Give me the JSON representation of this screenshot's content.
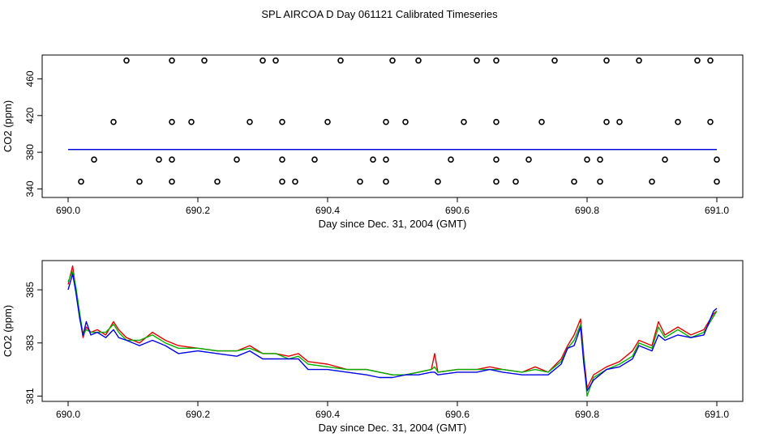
{
  "title": "SPL AIRCOA D  Day 061121  Calibrated Timeseries",
  "colors": {
    "red": "#e00000",
    "green": "#00b000",
    "blue": "#0000e0",
    "axis": "#000000"
  },
  "chart_data": [
    {
      "type": "scatter",
      "xlabel": "Day since Dec. 31, 2004 (GMT)",
      "ylabel": "CO2 (ppm)",
      "xlim": [
        690.0,
        691.0
      ],
      "ylim": [
        336,
        486
      ],
      "xticks": [
        690.0,
        690.2,
        690.4,
        690.6,
        690.8,
        691.0
      ],
      "xtick_labels": [
        "690.0",
        "690.2",
        "690.4",
        "690.6",
        "690.8",
        "691.0"
      ],
      "yticks": [
        340,
        380,
        420,
        460
      ],
      "ytick_labels": [
        "340",
        "380",
        "420",
        "460"
      ],
      "grid": false,
      "points": [
        [
          690.09,
          480
        ],
        [
          690.16,
          480
        ],
        [
          690.21,
          480
        ],
        [
          690.3,
          480
        ],
        [
          690.32,
          480
        ],
        [
          690.42,
          480
        ],
        [
          690.5,
          480
        ],
        [
          690.54,
          480
        ],
        [
          690.63,
          480
        ],
        [
          690.66,
          480
        ],
        [
          690.75,
          480
        ],
        [
          690.83,
          480
        ],
        [
          690.88,
          480
        ],
        [
          690.97,
          480
        ],
        [
          690.99,
          480
        ],
        [
          690.07,
          413
        ],
        [
          690.16,
          413
        ],
        [
          690.19,
          413
        ],
        [
          690.28,
          413
        ],
        [
          690.33,
          413
        ],
        [
          690.4,
          413
        ],
        [
          690.49,
          413
        ],
        [
          690.52,
          413
        ],
        [
          690.61,
          413
        ],
        [
          690.66,
          413
        ],
        [
          690.73,
          413
        ],
        [
          690.83,
          413
        ],
        [
          690.85,
          413
        ],
        [
          690.94,
          413
        ],
        [
          690.99,
          413
        ],
        [
          690.04,
          372
        ],
        [
          690.14,
          372
        ],
        [
          690.16,
          372
        ],
        [
          690.26,
          372
        ],
        [
          690.33,
          372
        ],
        [
          690.38,
          372
        ],
        [
          690.47,
          372
        ],
        [
          690.49,
          372
        ],
        [
          690.59,
          372
        ],
        [
          690.66,
          372
        ],
        [
          690.71,
          372
        ],
        [
          690.8,
          372
        ],
        [
          690.82,
          372
        ],
        [
          690.92,
          372
        ],
        [
          691.0,
          372
        ],
        [
          690.02,
          348
        ],
        [
          690.11,
          348
        ],
        [
          690.16,
          348
        ],
        [
          690.23,
          348
        ],
        [
          690.33,
          348
        ],
        [
          690.35,
          348
        ],
        [
          690.45,
          348
        ],
        [
          690.49,
          348
        ],
        [
          690.57,
          348
        ],
        [
          690.66,
          348
        ],
        [
          690.69,
          348
        ],
        [
          690.78,
          348
        ],
        [
          690.82,
          348
        ],
        [
          690.9,
          348
        ],
        [
          691.0,
          348
        ]
      ],
      "series": [
        {
          "color": "red",
          "level": 383
        },
        {
          "color": "green",
          "level": 383
        },
        {
          "color": "blue",
          "level": 383
        }
      ]
    },
    {
      "type": "line",
      "xlabel": "Day since Dec. 31, 2004 (GMT)",
      "ylabel": "CO2 (ppm)",
      "xlim": [
        690.0,
        691.0
      ],
      "ylim": [
        380.8,
        386.1
      ],
      "xticks": [
        690.0,
        690.2,
        690.4,
        690.6,
        690.8,
        691.0
      ],
      "xtick_labels": [
        "690.0",
        "690.2",
        "690.4",
        "690.6",
        "690.8",
        "691.0"
      ],
      "yticks": [
        381,
        383,
        385
      ],
      "ytick_labels": [
        "381",
        "383",
        "385"
      ],
      "grid": false,
      "x": [
        690.0,
        690.007,
        690.012,
        690.018,
        690.023,
        690.028,
        690.035,
        690.045,
        690.058,
        690.07,
        690.078,
        690.09,
        690.11,
        690.13,
        690.15,
        690.17,
        690.2,
        690.23,
        690.26,
        690.28,
        690.3,
        690.32,
        690.34,
        690.355,
        690.37,
        690.4,
        690.43,
        690.46,
        690.48,
        690.5,
        690.52,
        690.54,
        690.56,
        690.565,
        690.57,
        690.6,
        690.63,
        690.65,
        690.67,
        690.7,
        690.72,
        690.74,
        690.76,
        690.77,
        690.78,
        690.79,
        690.795,
        690.8,
        690.81,
        690.83,
        690.85,
        690.87,
        690.88,
        690.9,
        690.91,
        690.92,
        690.94,
        690.96,
        690.98,
        690.99,
        690.995,
        691.0
      ],
      "series": [
        {
          "color": "red",
          "values": [
            385.2,
            385.9,
            385.0,
            384.0,
            383.2,
            383.6,
            383.4,
            383.5,
            383.3,
            383.8,
            383.5,
            383.2,
            383.0,
            383.4,
            383.1,
            382.9,
            382.8,
            382.7,
            382.7,
            382.9,
            382.6,
            382.6,
            382.5,
            382.6,
            382.3,
            382.2,
            382.0,
            382.0,
            381.9,
            381.8,
            381.8,
            381.9,
            382.0,
            382.6,
            381.9,
            382.0,
            382.0,
            382.1,
            382.0,
            381.9,
            382.1,
            381.9,
            382.4,
            382.9,
            383.3,
            383.9,
            382.5,
            381.3,
            381.8,
            382.1,
            382.3,
            382.7,
            383.1,
            382.9,
            383.8,
            383.3,
            383.6,
            383.3,
            383.5,
            383.9,
            384.1,
            384.2
          ]
        },
        {
          "color": "green",
          "values": [
            385.3,
            385.7,
            385.1,
            384.1,
            383.3,
            383.5,
            383.4,
            383.4,
            383.4,
            383.7,
            383.4,
            383.1,
            383.1,
            383.3,
            383.0,
            382.8,
            382.8,
            382.7,
            382.7,
            382.8,
            382.6,
            382.6,
            382.4,
            382.5,
            382.2,
            382.1,
            382.0,
            382.0,
            381.9,
            381.8,
            381.8,
            381.9,
            382.0,
            382.1,
            381.9,
            382.0,
            382.0,
            382.0,
            382.0,
            381.9,
            382.0,
            381.9,
            382.3,
            382.8,
            383.1,
            383.7,
            382.4,
            381.0,
            381.7,
            382.0,
            382.2,
            382.5,
            383.0,
            382.8,
            383.6,
            383.2,
            383.5,
            383.2,
            383.4,
            383.8,
            384.0,
            384.2
          ]
        },
        {
          "color": "blue",
          "values": [
            385.0,
            385.6,
            384.9,
            383.9,
            383.3,
            383.8,
            383.3,
            383.4,
            383.2,
            383.5,
            383.2,
            383.1,
            382.9,
            383.1,
            382.9,
            382.6,
            382.7,
            382.6,
            382.5,
            382.7,
            382.4,
            382.4,
            382.4,
            382.4,
            382.0,
            382.0,
            381.9,
            381.8,
            381.7,
            381.7,
            381.8,
            381.8,
            381.9,
            381.9,
            381.8,
            381.9,
            381.9,
            382.0,
            381.9,
            381.8,
            381.8,
            381.8,
            382.2,
            382.8,
            382.9,
            383.6,
            382.2,
            381.2,
            381.6,
            382.0,
            382.1,
            382.4,
            382.9,
            382.7,
            383.3,
            383.1,
            383.3,
            383.2,
            383.3,
            383.9,
            384.2,
            384.3
          ]
        }
      ]
    }
  ]
}
